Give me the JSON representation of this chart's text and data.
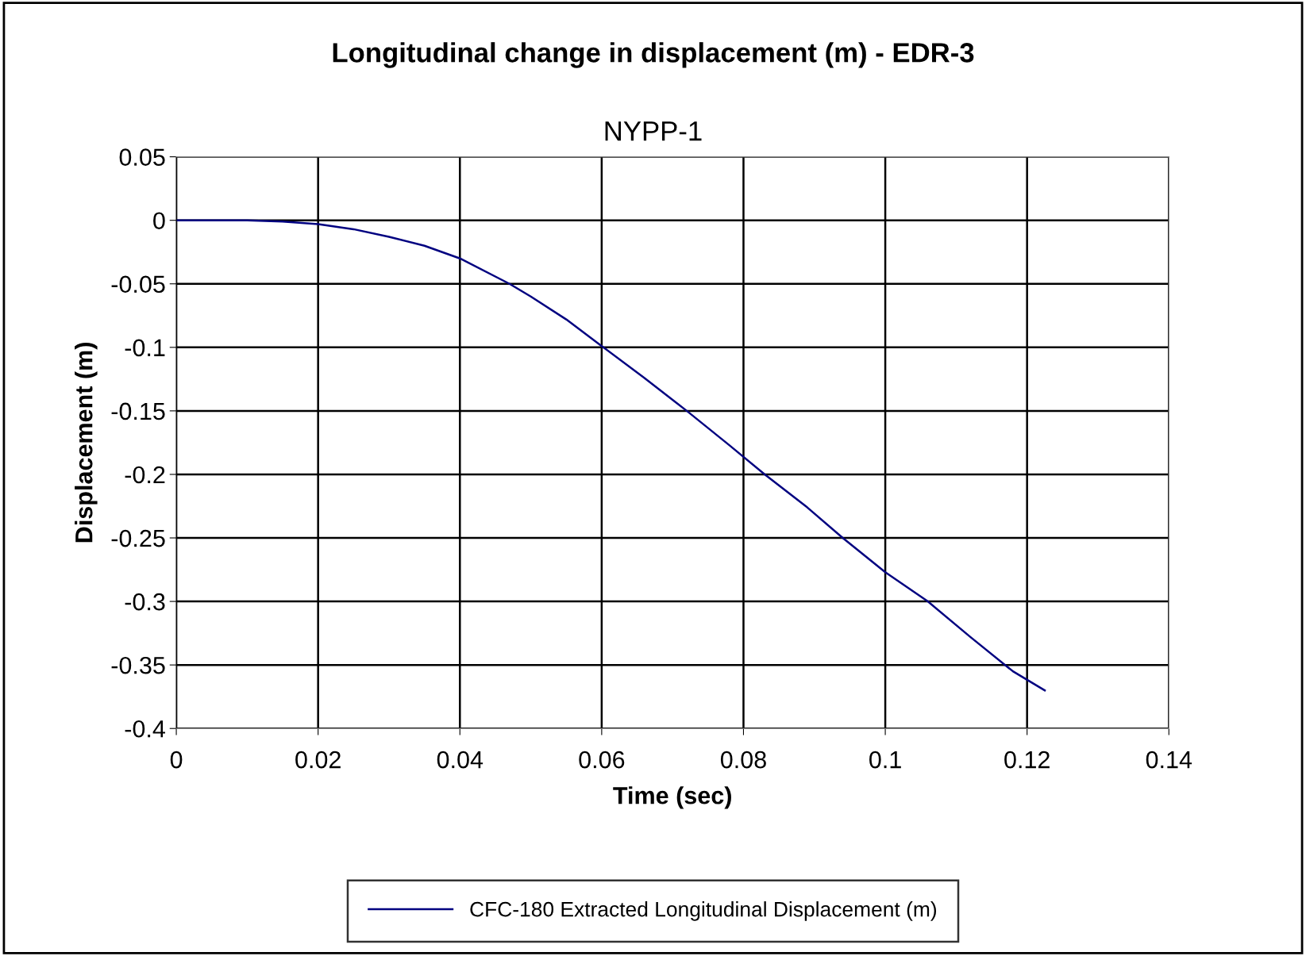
{
  "chart_data": {
    "type": "line",
    "title": "Longitudinal change in displacement (m) - EDR-3",
    "subtitle": "NYPP-1",
    "xlabel": "Time (sec)",
    "ylabel": "Displacement (m)",
    "series": [
      {
        "name": "CFC-180 Extracted Longitudinal Displacement (m)",
        "color": "#000080",
        "x": [
          0,
          0.01,
          0.015,
          0.02,
          0.025,
          0.03,
          0.035,
          0.04,
          0.047,
          0.05,
          0.055,
          0.06,
          0.066,
          0.072,
          0.078,
          0.083,
          0.089,
          0.094,
          0.1,
          0.106,
          0.112,
          0.118,
          0.1225
        ],
        "values": [
          0,
          0,
          -0.001,
          -0.003,
          -0.007,
          -0.013,
          -0.02,
          -0.03,
          -0.05,
          -0.06,
          -0.078,
          -0.099,
          -0.124,
          -0.15,
          -0.177,
          -0.2,
          -0.226,
          -0.25,
          -0.277,
          -0.3,
          -0.328,
          -0.355,
          -0.37
        ]
      }
    ],
    "xlim": [
      0,
      0.14
    ],
    "xticks": [
      0,
      0.02,
      0.04,
      0.06,
      0.08,
      0.1,
      0.12,
      0.14
    ],
    "ylim": [
      -0.4,
      0.05
    ],
    "yticks": [
      0.05,
      0,
      -0.05,
      -0.1,
      -0.15,
      -0.2,
      -0.25,
      -0.3,
      -0.35,
      -0.4
    ],
    "grid": true,
    "legend": "bottom",
    "marker": "none",
    "line_style": "solid"
  }
}
